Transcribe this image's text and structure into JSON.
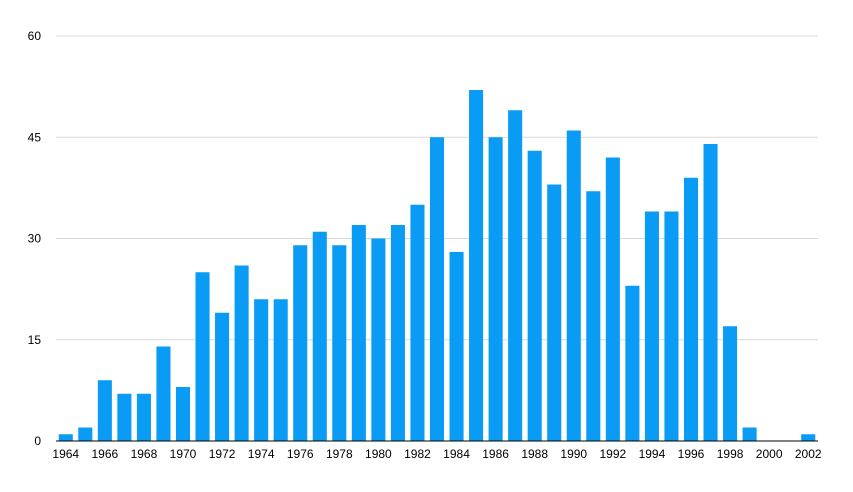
{
  "chart_data": {
    "type": "bar",
    "title": "",
    "xlabel": "",
    "ylabel": "",
    "ylim": [
      0,
      60
    ],
    "yticks": [
      0,
      15,
      30,
      45,
      60
    ],
    "grid": true,
    "legend": "none",
    "bar_color": "#0a9cf5",
    "categories": [
      "1964",
      "1965",
      "1966",
      "1967",
      "1968",
      "1969",
      "1970",
      "1971",
      "1972",
      "1973",
      "1974",
      "1975",
      "1976",
      "1977",
      "1978",
      "1979",
      "1980",
      "1981",
      "1982",
      "1983",
      "1984",
      "1985",
      "1986",
      "1987",
      "1988",
      "1989",
      "1990",
      "1991",
      "1992",
      "1993",
      "1994",
      "1995",
      "1996",
      "1997",
      "1998",
      "1999",
      "2000",
      "2001",
      "2002"
    ],
    "xtick_labels": [
      "1964",
      "1966",
      "1968",
      "1970",
      "1972",
      "1974",
      "1976",
      "1978",
      "1980",
      "1982",
      "1984",
      "1986",
      "1988",
      "1990",
      "1992",
      "1994",
      "1996",
      "1998",
      "2000",
      "2002"
    ],
    "values": [
      1,
      2,
      9,
      7,
      7,
      14,
      8,
      25,
      19,
      26,
      21,
      21,
      29,
      31,
      29,
      32,
      30,
      32,
      35,
      45,
      28,
      52,
      45,
      49,
      43,
      38,
      46,
      37,
      42,
      23,
      34,
      34,
      39,
      44,
      17,
      2,
      0,
      0,
      1
    ]
  }
}
